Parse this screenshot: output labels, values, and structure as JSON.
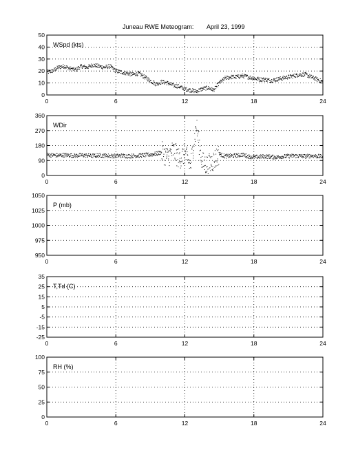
{
  "title_left": "Juneau RWE Meteogram:",
  "title_right": "April 23, 1999",
  "colors": {
    "axis": "#000000",
    "grid": "#000000",
    "data": "#000000",
    "background": "#ffffff"
  },
  "chart_data": [
    {
      "type": "scatter",
      "label": "WSpd (kts)",
      "xlim": [
        0,
        24
      ],
      "ylim": [
        0,
        50
      ],
      "xticks": [
        "0",
        "6",
        "12",
        "18",
        "24"
      ],
      "yticks": [
        "0",
        "10",
        "20",
        "30",
        "40",
        "50"
      ],
      "grid": true,
      "series": [
        {
          "x": [
            0,
            0.5,
            1,
            1.5,
            2,
            2.5,
            3,
            3.5,
            4,
            4.5,
            5,
            5.5,
            6,
            6.5,
            7,
            7.5,
            8,
            8.5,
            9,
            9.5,
            10,
            10.5,
            11,
            11.5,
            12,
            12.5,
            13,
            13.5,
            14,
            14.5,
            15,
            15.5,
            16,
            16.5,
            17,
            17.5,
            18,
            18.5,
            19,
            19.5,
            20,
            20.5,
            21,
            21.5,
            22,
            22.5,
            23,
            23.5,
            24
          ],
          "y": [
            19,
            20,
            23,
            24,
            22,
            21,
            24,
            23,
            25,
            24,
            23,
            24,
            20,
            19,
            18,
            17,
            18,
            15,
            12,
            9,
            11,
            10,
            8,
            7,
            5,
            4,
            3,
            5,
            6,
            4,
            10,
            14,
            15,
            15,
            16,
            15,
            14,
            13,
            13,
            12,
            13,
            14,
            15,
            16,
            17,
            17,
            15,
            13,
            11
          ]
        }
      ]
    },
    {
      "type": "scatter",
      "label": "WDir",
      "xlim": [
        0,
        24
      ],
      "ylim": [
        0,
        360
      ],
      "xticks": [
        "0",
        "6",
        "12",
        "18",
        "24"
      ],
      "yticks": [
        "0",
        "90",
        "180",
        "270",
        "360"
      ],
      "grid": true,
      "series": [
        {
          "x": [
            0,
            0.5,
            1,
            1.5,
            2,
            2.5,
            3,
            3.5,
            4,
            4.5,
            5,
            5.5,
            6,
            6.5,
            7,
            7.5,
            8,
            8.5,
            9,
            9.5,
            10,
            10.5,
            11,
            11.5,
            12,
            12.5,
            13,
            13.5,
            14,
            14.5,
            15,
            15.5,
            16,
            16.5,
            17,
            17.5,
            18,
            18.5,
            19,
            19.5,
            20,
            20.5,
            21,
            21.5,
            22,
            22.5,
            23,
            23.5,
            24
          ],
          "y": [
            125,
            122,
            120,
            123,
            121,
            119,
            122,
            120,
            118,
            121,
            120,
            118,
            117,
            119,
            116,
            118,
            120,
            122,
            125,
            130,
            140,
            110,
            150,
            100,
            130,
            60,
            300,
            80,
            60,
            90,
            130,
            115,
            118,
            120,
            125,
            115,
            110,
            112,
            115,
            112,
            110,
            114,
            116,
            118,
            117,
            115,
            118,
            116,
            112
          ]
        }
      ]
    },
    {
      "type": "scatter",
      "label": "P (mb)",
      "xlim": [
        0,
        24
      ],
      "ylim": [
        950,
        1050
      ],
      "xticks": [
        "0",
        "6",
        "12",
        "18",
        "24"
      ],
      "yticks": [
        "950",
        "975",
        "1000",
        "1025",
        "1050"
      ],
      "grid": true,
      "series": []
    },
    {
      "type": "scatter",
      "label": "T,Td (C)",
      "xlim": [
        0,
        24
      ],
      "ylim": [
        -25,
        35
      ],
      "xticks": [
        "0",
        "6",
        "12",
        "18",
        "24"
      ],
      "yticks": [
        "-25",
        "-15",
        "-5",
        "5",
        "15",
        "25",
        "35"
      ],
      "grid": true,
      "series": []
    },
    {
      "type": "scatter",
      "label": "RH (%)",
      "xlim": [
        0,
        24
      ],
      "ylim": [
        0,
        100
      ],
      "xticks": [
        "0",
        "6",
        "12",
        "18",
        "24"
      ],
      "yticks": [
        "0",
        "25",
        "50",
        "75",
        "100"
      ],
      "grid": true,
      "series": []
    }
  ]
}
